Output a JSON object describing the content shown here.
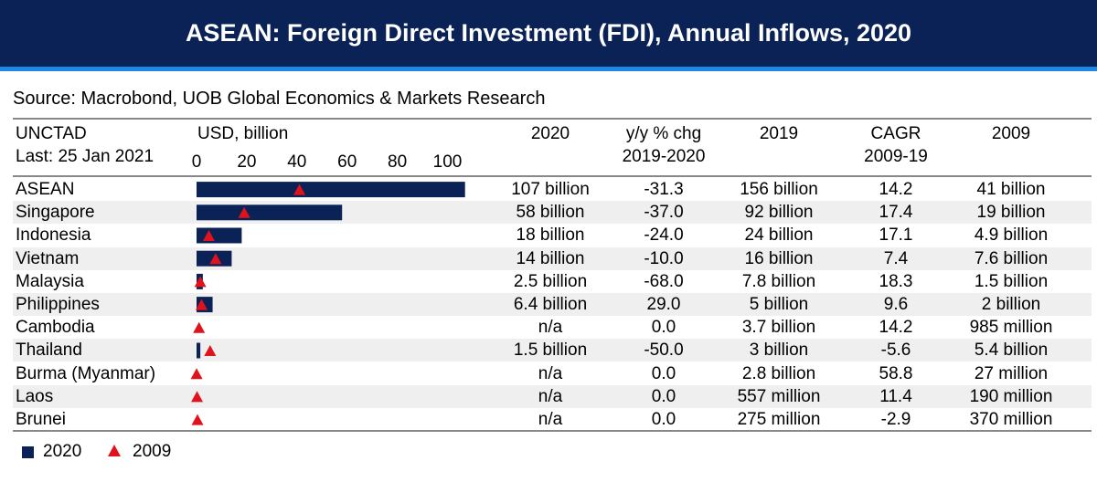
{
  "title": "ASEAN: Foreign Direct Investment (FDI), Annual Inflows, 2020",
  "source": "Source: Macrobond, UOB Global Economics & Markets Research",
  "header": {
    "org": "UNCTAD",
    "last": "Last: 25 Jan 2021",
    "unit": "USD, billion",
    "col_2020": "2020",
    "col_yoy_1": "y/y % chg",
    "col_yoy_2": "2019-2020",
    "col_2019": "2019",
    "col_cagr_1": "CAGR",
    "col_cagr_2": "2009-19",
    "col_2009": "2009"
  },
  "colors": {
    "bar": "#0b2257",
    "marker": "#e0121b",
    "title_bg": "#0b2257",
    "accent": "#1e88e5"
  },
  "legend": {
    "series_2020": "2020",
    "series_2009": "2009"
  },
  "rows": [
    {
      "name": "ASEAN",
      "v2020": "107 billion",
      "yoy": "-31.3",
      "v2019": "156 billion",
      "cagr": "14.2",
      "v2009": "41 billion"
    },
    {
      "name": "Singapore",
      "v2020": "58 billion",
      "yoy": "-37.0",
      "v2019": "92 billion",
      "cagr": "17.4",
      "v2009": "19 billion"
    },
    {
      "name": "Indonesia",
      "v2020": "18 billion",
      "yoy": "-24.0",
      "v2019": "24 billion",
      "cagr": "17.1",
      "v2009": "4.9 billion"
    },
    {
      "name": "Vietnam",
      "v2020": "14 billion",
      "yoy": "-10.0",
      "v2019": "16 billion",
      "cagr": "7.4",
      "v2009": "7.6 billion"
    },
    {
      "name": "Malaysia",
      "v2020": "2.5 billion",
      "yoy": "-68.0",
      "v2019": "7.8 billion",
      "cagr": "18.3",
      "v2009": "1.5 billion"
    },
    {
      "name": "Philippines",
      "v2020": "6.4 billion",
      "yoy": "29.0",
      "v2019": "5 billion",
      "cagr": "9.6",
      "v2009": "2 billion"
    },
    {
      "name": "Cambodia",
      "v2020": "n/a",
      "yoy": "0.0",
      "v2019": "3.7 billion",
      "cagr": "14.2",
      "v2009": "985 million"
    },
    {
      "name": "Thailand",
      "v2020": "1.5 billion",
      "yoy": "-50.0",
      "v2019": "3 billion",
      "cagr": "-5.6",
      "v2009": "5.4 billion"
    },
    {
      "name": "Burma (Myanmar)",
      "v2020": "n/a",
      "yoy": "0.0",
      "v2019": "2.8 billion",
      "cagr": "58.8",
      "v2009": "27 million"
    },
    {
      "name": "Laos",
      "v2020": "n/a",
      "yoy": "0.0",
      "v2019": "557 million",
      "cagr": "11.4",
      "v2009": "190 million"
    },
    {
      "name": "Brunei",
      "v2020": "n/a",
      "yoy": "0.0",
      "v2019": "275 million",
      "cagr": "-2.9",
      "v2009": "370 million"
    }
  ],
  "chart_data": {
    "type": "bar",
    "orientation": "horizontal",
    "categories": [
      "ASEAN",
      "Singapore",
      "Indonesia",
      "Vietnam",
      "Malaysia",
      "Philippines",
      "Cambodia",
      "Thailand",
      "Burma (Myanmar)",
      "Laos",
      "Brunei"
    ],
    "series": [
      {
        "name": "2020",
        "mark": "bar",
        "values": [
          107,
          58,
          18,
          14,
          2.5,
          6.4,
          null,
          1.5,
          null,
          null,
          null
        ]
      },
      {
        "name": "2009",
        "mark": "triangle",
        "values": [
          41,
          19,
          4.9,
          7.6,
          1.5,
          2,
          0.985,
          5.4,
          0.027,
          0.19,
          0.37
        ]
      }
    ],
    "ylabel": "USD, billion",
    "xlim": [
      0,
      110
    ],
    "ticks": [
      0,
      20,
      40,
      60,
      80,
      100
    ],
    "tick_labels": [
      "0",
      "20",
      "40",
      "60",
      "80",
      "100"
    ],
    "grid": false,
    "legend_position": "bottom-left"
  }
}
